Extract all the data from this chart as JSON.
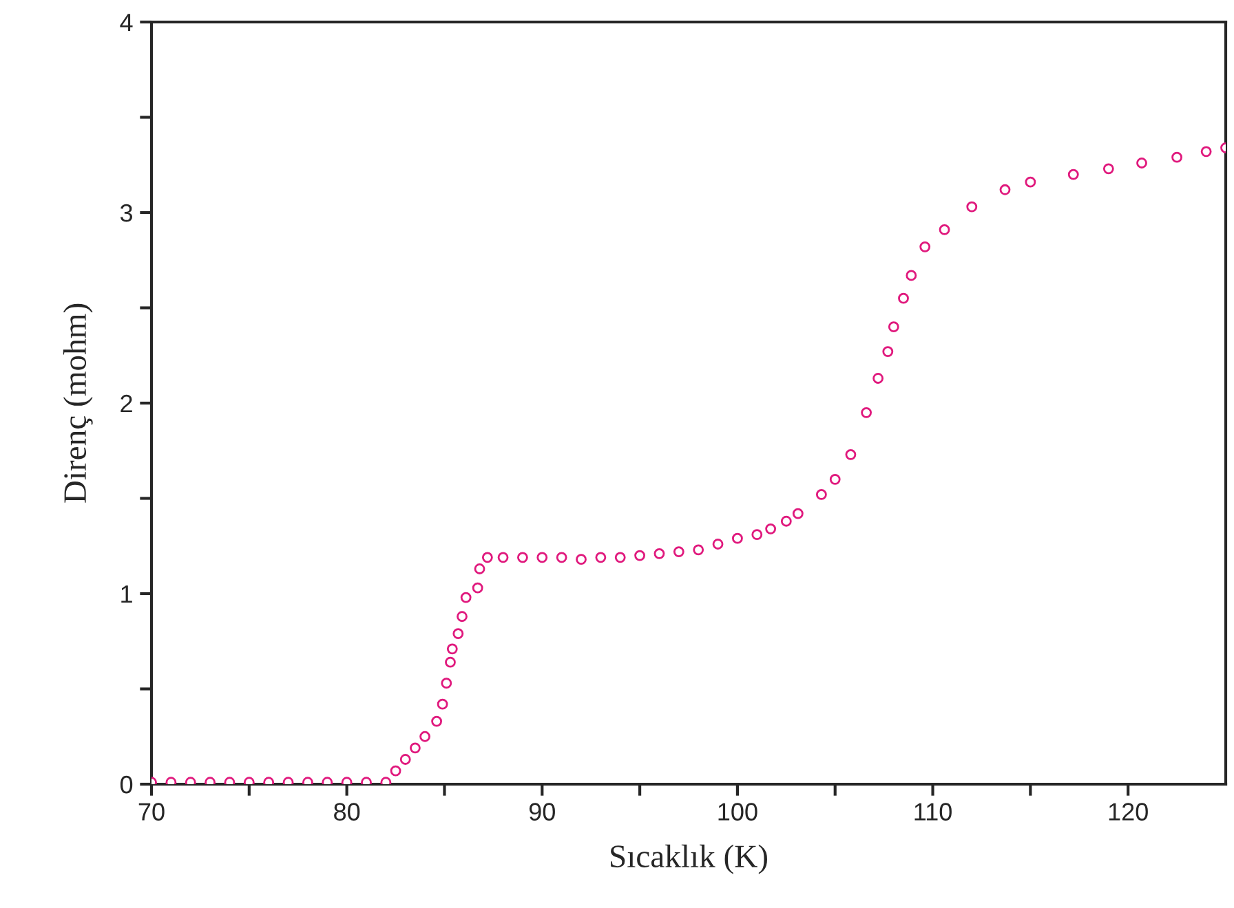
{
  "chart_data": {
    "type": "scatter",
    "xlabel": "Sıcaklık (K)",
    "ylabel": "Direnç (mohm)",
    "xlim": [
      70,
      125
    ],
    "ylim": [
      0,
      4
    ],
    "xticks": [
      70,
      {
        "value": 75,
        "label": null
      },
      80,
      {
        "value": 85,
        "label": null
      },
      90,
      {
        "value": 95,
        "label": null
      },
      100,
      {
        "value": 105,
        "label": null
      },
      110,
      {
        "value": 115,
        "label": null
      },
      120
    ],
    "yticks": [
      0,
      {
        "value": 0.5,
        "label": null
      },
      1,
      {
        "value": 1.5,
        "label": null
      },
      2,
      {
        "value": 2.5,
        "label": null
      },
      3,
      {
        "value": 3.5,
        "label": null
      },
      4
    ],
    "marker": "circle",
    "grid": false,
    "series": [
      {
        "color": "#e0197d",
        "x": [
          70,
          71,
          72,
          73,
          74,
          75,
          76,
          77,
          78,
          79,
          80,
          81,
          82,
          82.5,
          83,
          83.5,
          84,
          84.6,
          84.9,
          85.1,
          85.3,
          85.4,
          85.7,
          85.9,
          86.1,
          86.7,
          86.8,
          87.2,
          88,
          89,
          90,
          91,
          92,
          93,
          94,
          95,
          96,
          97,
          98,
          99,
          100,
          101,
          101.7,
          102.5,
          103.1,
          104.3,
          105,
          105.8,
          106.6,
          107.2,
          107.7,
          108,
          108.5,
          108.9,
          109.6,
          110.6,
          112,
          113.7,
          115,
          117.2,
          119,
          120.7,
          122.5,
          124,
          125
        ],
        "values": [
          0.01,
          0.01,
          0.01,
          0.01,
          0.01,
          0.01,
          0.01,
          0.01,
          0.01,
          0.01,
          0.01,
          0.01,
          0.01,
          0.07,
          0.13,
          0.19,
          0.25,
          0.33,
          0.42,
          0.53,
          0.64,
          0.71,
          0.79,
          0.88,
          0.98,
          1.03,
          1.13,
          1.19,
          1.19,
          1.19,
          1.19,
          1.19,
          1.18,
          1.19,
          1.19,
          1.2,
          1.21,
          1.22,
          1.23,
          1.26,
          1.29,
          1.31,
          1.34,
          1.38,
          1.42,
          1.52,
          1.6,
          1.73,
          1.95,
          2.13,
          2.27,
          2.4,
          2.55,
          2.67,
          2.82,
          2.91,
          3.03,
          3.12,
          3.16,
          3.2,
          3.23,
          3.26,
          3.29,
          3.32,
          3.34
        ]
      }
    ]
  }
}
